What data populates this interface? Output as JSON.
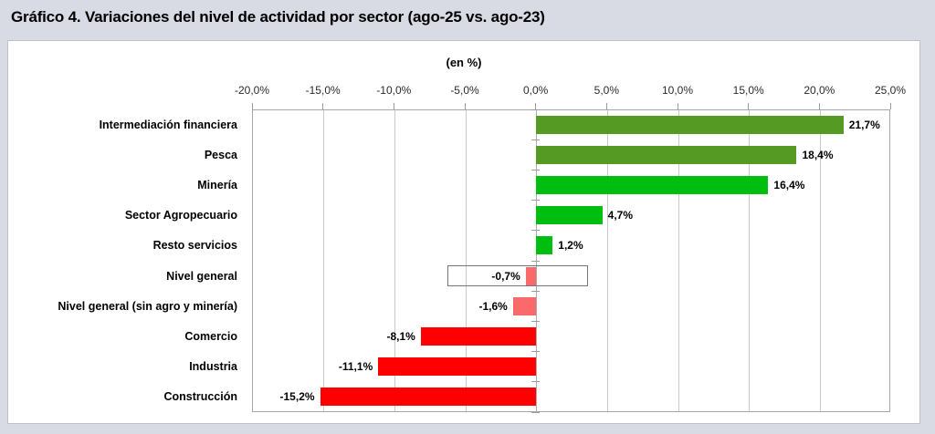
{
  "title": "Gráfico 4. Variaciones del nivel de actividad por sector (ago-25 vs. ago-23)",
  "chart_data": {
    "type": "bar",
    "orientation": "horizontal",
    "subtitle": "(en %)",
    "unit": "%",
    "categories": [
      "Intermediación financiera",
      "Pesca",
      "Minería",
      "Sector Agropecuario",
      "Resto servicios",
      "Nivel general",
      "Nivel general (sin agro y minería)",
      "Comercio",
      "Industria",
      "Construcción"
    ],
    "values": [
      21.7,
      18.4,
      16.4,
      4.7,
      1.2,
      -0.7,
      -1.6,
      -8.1,
      -11.1,
      -15.2
    ],
    "value_labels": [
      "21,7%",
      "18,4%",
      "16,4%",
      "4,7%",
      "1,2%",
      "-0,7%",
      "-1,6%",
      "-8,1%",
      "-11,1%",
      "-15,2%"
    ],
    "bar_colors": [
      "#559B23",
      "#559B23",
      "#00BE10",
      "#00BE10",
      "#00BE10",
      "#FA6A6A",
      "#FA6A6A",
      "#FF0000",
      "#FF0000",
      "#FF0000"
    ],
    "x_axis": {
      "min": -20,
      "max": 25,
      "step": 5,
      "tick_labels": [
        "-20,0%",
        "-15,0%",
        "-10,0%",
        "-5,0%",
        "0,0%",
        "5,0%",
        "10,0%",
        "15,0%",
        "20,0%",
        "25,0%"
      ]
    },
    "grid": true,
    "legend": "none",
    "highlight_box": {
      "category": "Nivel general",
      "category_index": 5,
      "x_from": -6.2,
      "x_to": 3.7
    },
    "colors": {
      "page_background": "#D9DBE4",
      "panel_background": "#FFFFFF",
      "gridline": "#C9C9C9",
      "zero_axis": "#ABABB1",
      "axis_tick": "#9B9BA1",
      "plot_border": "#A6A6AC",
      "highlight_box_border": "#73738C",
      "text": "#000000"
    }
  }
}
